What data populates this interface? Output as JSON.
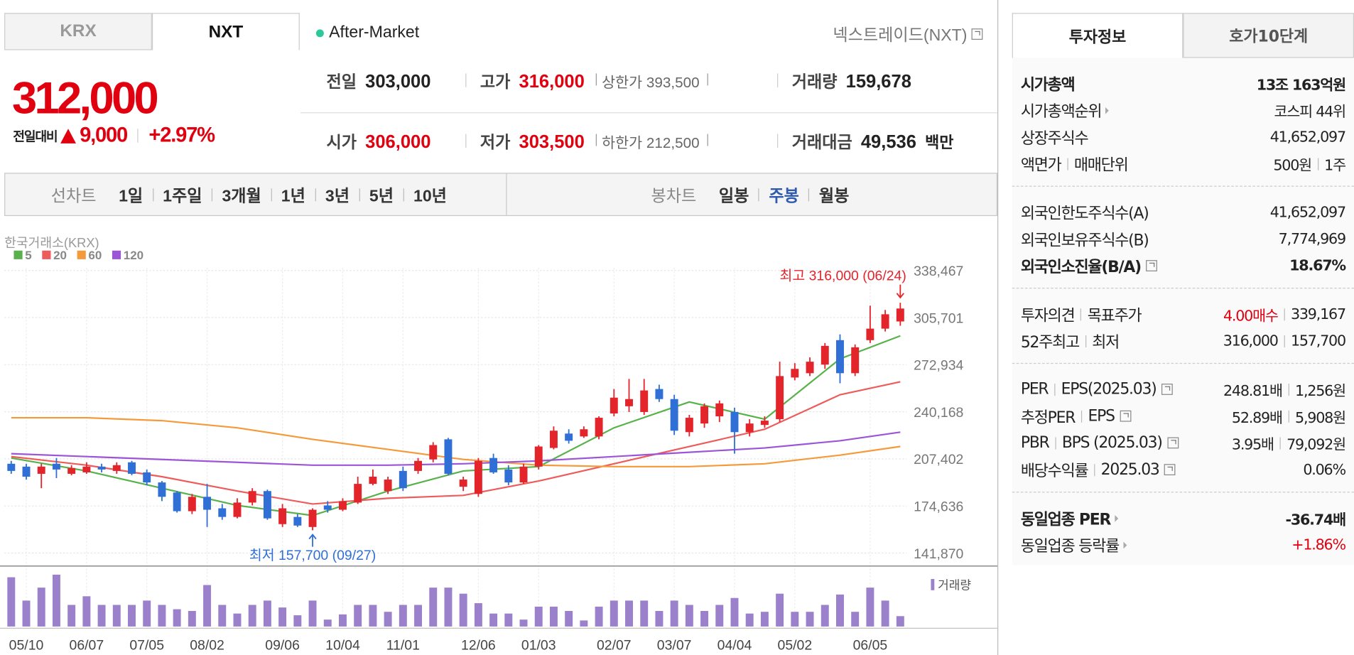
{
  "tabs": [
    "KRX",
    "NXT"
  ],
  "selected_tab": 1,
  "market_status": "After-Market",
  "venue": "넥스트레이드(NXT)",
  "price": {
    "current": "312,000",
    "change_label": "전일대비",
    "change": "9,000",
    "change_rate": "+2.97%"
  },
  "quote": [
    {
      "label": "전일",
      "value": "303,000",
      "color": "dark"
    },
    {
      "label": "고가",
      "value": "316,000",
      "color": "red",
      "sub_label": "상한가",
      "sub_value": "393,500"
    },
    {
      "label": "거래량",
      "value": "159,678",
      "color": "dark"
    },
    {
      "label": "시가",
      "value": "306,000",
      "color": "red"
    },
    {
      "label": "저가",
      "value": "303,500",
      "color": "red",
      "sub_label": "하한가",
      "sub_value": "212,500"
    },
    {
      "label": "거래대금",
      "value": "49,536",
      "color": "dark",
      "unit": "백만"
    }
  ],
  "line_chart_tabs": {
    "label": "선차트",
    "items": [
      "1일",
      "1주일",
      "3개월",
      "1년",
      "3년",
      "5년",
      "10년"
    ]
  },
  "candle_chart_tabs": {
    "label": "봉차트",
    "items": [
      "일봉",
      "주봉",
      "월봉"
    ],
    "selected": 1
  },
  "chart": {
    "type": "candlestick",
    "source": "한국거래소(KRX)",
    "up_color": "#e3242b",
    "down_color": "#2f6fd6",
    "ylim": [
      141870,
      338467
    ],
    "yticks": [
      {
        "value": 141870,
        "label": "141,870"
      },
      {
        "value": 174636,
        "label": "174,636"
      },
      {
        "value": 207402,
        "label": "207,402"
      },
      {
        "value": 240168,
        "label": "240,168"
      },
      {
        "value": 272934,
        "label": "272,934"
      },
      {
        "value": 305701,
        "label": "305,701"
      },
      {
        "value": 338467,
        "label": "338,467"
      }
    ],
    "categories": [
      null,
      "05/10",
      null,
      null,
      null,
      "06/07",
      null,
      null,
      null,
      "07/05",
      null,
      null,
      null,
      "08/02",
      null,
      null,
      null,
      null,
      "09/06",
      null,
      null,
      null,
      "10/04",
      null,
      null,
      null,
      "11/01",
      null,
      null,
      null,
      null,
      "12/06",
      null,
      null,
      null,
      "01/03",
      null,
      null,
      null,
      null,
      "02/07",
      null,
      null,
      null,
      "03/07",
      null,
      null,
      null,
      "04/04",
      null,
      null,
      null,
      "05/02",
      null,
      null,
      null,
      null,
      "06/05",
      null,
      null
    ],
    "open": [
      204000,
      202000,
      197000,
      204000,
      197000,
      198000,
      202000,
      199000,
      205000,
      198000,
      191000,
      184000,
      171000,
      181000,
      173000,
      167000,
      177000,
      185000,
      162000,
      167000,
      160000,
      175000,
      172000,
      177000,
      190000,
      185000,
      199000,
      199000,
      207000,
      221000,
      188000,
      183000,
      208000,
      200000,
      191000,
      202000,
      215000,
      225000,
      223000,
      223000,
      239000,
      244000,
      240000,
      256000,
      249000,
      226000,
      232000,
      237000,
      240000,
      226000,
      231000,
      235000,
      264000,
      267000,
      273000,
      290000,
      267000,
      290000,
      298000,
      303000
    ],
    "high": [
      206000,
      204000,
      204000,
      208000,
      203000,
      205000,
      204000,
      205000,
      206000,
      200000,
      192000,
      185000,
      183000,
      190000,
      176000,
      180000,
      187000,
      186000,
      176000,
      169000,
      173000,
      178000,
      180000,
      195000,
      200000,
      195000,
      202000,
      208000,
      219000,
      222000,
      195000,
      208000,
      211000,
      203000,
      204000,
      217000,
      230000,
      228000,
      230000,
      237000,
      256000,
      263000,
      263000,
      259000,
      252000,
      238000,
      246000,
      248000,
      243000,
      235000,
      237000,
      275000,
      274000,
      278000,
      288000,
      294000,
      287000,
      314000,
      311000,
      316000
    ],
    "low": [
      197000,
      193000,
      187000,
      194000,
      196000,
      197000,
      198000,
      197000,
      196000,
      189000,
      178000,
      170000,
      169000,
      160000,
      165000,
      166000,
      175000,
      165000,
      160000,
      160000,
      157700,
      170000,
      171000,
      176000,
      189000,
      183000,
      185000,
      197000,
      205000,
      196000,
      185000,
      181000,
      197000,
      189000,
      190000,
      200000,
      214000,
      218000,
      222000,
      221000,
      237000,
      240000,
      238000,
      247000,
      224000,
      223000,
      229000,
      233000,
      211000,
      223000,
      229000,
      233000,
      262000,
      265000,
      270000,
      260000,
      265000,
      288000,
      296000,
      300000
    ],
    "close": [
      199000,
      195000,
      202000,
      200000,
      201000,
      202000,
      200000,
      203000,
      197000,
      191000,
      181000,
      171000,
      181000,
      172000,
      167000,
      177000,
      185000,
      166000,
      173000,
      161000,
      172000,
      172000,
      178000,
      190000,
      195000,
      193000,
      187000,
      206000,
      217000,
      197000,
      193000,
      206000,
      198000,
      191000,
      202000,
      216000,
      227000,
      220000,
      228000,
      236000,
      250000,
      249000,
      255000,
      249000,
      227000,
      236000,
      244000,
      246000,
      226000,
      232000,
      234000,
      265000,
      270000,
      275000,
      286000,
      267000,
      285000,
      298000,
      308000,
      312000
    ],
    "moving_averages": [
      {
        "name": "5",
        "color": "#58b14a",
        "index": [
          0,
          5,
          10,
          15,
          20,
          25,
          30,
          35,
          40,
          45,
          50,
          55,
          59
        ],
        "values": [
          208000,
          199000,
          187000,
          175000,
          168000,
          185000,
          199000,
          202000,
          229000,
          247000,
          235000,
          277000,
          293000
        ]
      },
      {
        "name": "20",
        "color": "#ee5b5b",
        "index": [
          0,
          5,
          10,
          15,
          20,
          25,
          30,
          35,
          40,
          45,
          50,
          55,
          59
        ],
        "values": [
          209000,
          203000,
          195000,
          185000,
          176000,
          180000,
          182000,
          192000,
          204000,
          216000,
          228000,
          252000,
          261000
        ]
      },
      {
        "name": "60",
        "color": "#f59a3a",
        "index": [
          0,
          5,
          10,
          15,
          20,
          25,
          30,
          35,
          40,
          45,
          50,
          55,
          59
        ],
        "values": [
          236000,
          236000,
          234000,
          229000,
          221000,
          214000,
          207000,
          203000,
          202000,
          202000,
          204000,
          210000,
          216000
        ]
      },
      {
        "name": "120",
        "color": "#9b55d6",
        "index": [
          0,
          5,
          10,
          15,
          20,
          25,
          30,
          35,
          40,
          45,
          50,
          55,
          59
        ],
        "values": [
          211000,
          209000,
          207000,
          205000,
          203000,
          203000,
          204000,
          206000,
          209000,
          212000,
          215000,
          220000,
          226000
        ]
      }
    ],
    "high_annotation": "최고 316,000 (06/24)",
    "low_annotation": "최저 157,700 (09/27)",
    "high_index": 59,
    "low_index": 20,
    "volume_label": "거래량",
    "volume_color": "#9b80cc",
    "volume": [
      57,
      30,
      45,
      60,
      25,
      35,
      25,
      25,
      25,
      30,
      25,
      20,
      18,
      48,
      25,
      15,
      25,
      30,
      22,
      13,
      30,
      8,
      14,
      25,
      25,
      17,
      25,
      25,
      45,
      45,
      38,
      27,
      15,
      15,
      8,
      23,
      23,
      18,
      7,
      23,
      30,
      30,
      30,
      18,
      30,
      25,
      18,
      25,
      33,
      15,
      17,
      38,
      17,
      17,
      25,
      37,
      17,
      45,
      30,
      12
    ]
  },
  "info_tabs": [
    "투자정보",
    "호가10단계"
  ],
  "info_sections": [
    [
      {
        "labels": [
          "시가총액"
        ],
        "values": [
          "13조 163억원"
        ],
        "emphasis": "bold"
      },
      {
        "labels": [
          "시가총액순위"
        ],
        "values": [
          "코스피 44위"
        ],
        "arrow": true
      },
      {
        "labels": [
          "상장주식수"
        ],
        "values": [
          "41,652,097"
        ]
      },
      {
        "labels": [
          "액면가",
          "매매단위"
        ],
        "values": [
          "500원",
          "1주"
        ]
      }
    ],
    [
      {
        "labels": [
          "외국인한도주식수(A)"
        ],
        "values": [
          "41,652,097"
        ]
      },
      {
        "labels": [
          "외국인보유주식수(B)"
        ],
        "values": [
          "7,774,969"
        ]
      },
      {
        "labels": [
          "외국인소진율(B/A)"
        ],
        "values": [
          "18.67%"
        ],
        "emphasis": "bold",
        "help": true
      }
    ],
    [
      {
        "labels": [
          "투자의견",
          "목표주가"
        ],
        "values": [
          "4.00매수",
          "339,167"
        ],
        "first_value_red": true
      },
      {
        "labels": [
          "52주최고",
          "최저"
        ],
        "values": [
          "316,000",
          "157,700"
        ]
      }
    ],
    [
      {
        "labels": [
          "PER",
          "EPS(2025.03)"
        ],
        "values": [
          "248.81배",
          "1,256원"
        ],
        "help": true
      },
      {
        "labels": [
          "추정PER",
          "EPS"
        ],
        "values": [
          "52.89배",
          "5,908원"
        ],
        "help": true
      },
      {
        "labels": [
          "PBR",
          "BPS (2025.03)"
        ],
        "values": [
          "3.95배",
          "79,092원"
        ],
        "help": true
      },
      {
        "labels": [
          "배당수익률",
          "2025.03"
        ],
        "values": [
          "0.06%"
        ],
        "help": true
      }
    ],
    [
      {
        "labels": [
          "동일업종 PER"
        ],
        "values": [
          "-36.74배"
        ],
        "emphasis": "bold",
        "arrow": true
      },
      {
        "labels": [
          "동일업종 등락률"
        ],
        "values": [
          "+1.86%"
        ],
        "emphasis": "red",
        "arrow": true
      }
    ]
  ]
}
